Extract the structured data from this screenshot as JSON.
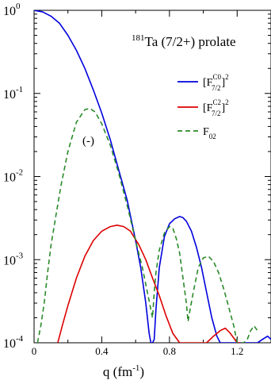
{
  "chart_data": {
    "type": "line",
    "title": "¹⁸¹Ta (7/2+) prolate",
    "title_parts": {
      "mass": "181",
      "text": "Ta (7/2+) prolate"
    },
    "xlabel": "q (fm⁻¹)",
    "xlabel_parts": {
      "base": "q (fm",
      "sup": "-1",
      "close": ")"
    },
    "ylabel": "",
    "xlim": [
      0,
      1.4
    ],
    "ylim": [
      0.0001,
      1
    ],
    "yscale": "log",
    "x_ticks": [
      {
        "v": 0,
        "label": "0"
      },
      {
        "v": 0.4,
        "label": "0.4"
      },
      {
        "v": 0.8,
        "label": "0.8"
      },
      {
        "v": 1.2,
        "label": "1.2"
      }
    ],
    "y_ticks": [
      {
        "v": 1,
        "base": "10",
        "exp": "0"
      },
      {
        "v": 0.1,
        "base": "10",
        "exp": "-1"
      },
      {
        "v": 0.01,
        "base": "10",
        "exp": "-2"
      },
      {
        "v": 0.001,
        "base": "10",
        "exp": "-3"
      },
      {
        "v": 0.0001,
        "base": "10",
        "exp": "-4"
      }
    ],
    "legend_position": "top-right",
    "annotations": [
      {
        "text": "(-)",
        "x": 0.3,
        "y": 0.023,
        "color": "#2a8a2a"
      }
    ],
    "series": [
      {
        "name": "[F^C0_7/2]^2",
        "legend": {
          "pre": "[F",
          "sup": "C0",
          "sub": "7/2",
          "post": "]",
          "post_sup": "2"
        },
        "color": "#0000dd",
        "dash": "none",
        "x": [
          0,
          0.05,
          0.1,
          0.15,
          0.2,
          0.25,
          0.3,
          0.35,
          0.4,
          0.45,
          0.5,
          0.55,
          0.6,
          0.63,
          0.66,
          0.68,
          0.69,
          0.7,
          0.71,
          0.72,
          0.74,
          0.77,
          0.8,
          0.83,
          0.86,
          0.88,
          0.9,
          0.93,
          0.96,
          0.99,
          1.02,
          1.05,
          1.08,
          1.1,
          1.11,
          1.113,
          1.12,
          1.14,
          1.17,
          1.2,
          1.23,
          1.26,
          1.29,
          1.32,
          1.35,
          1.38,
          1.4
        ],
        "values": [
          1.0,
          0.96,
          0.85,
          0.7,
          0.5,
          0.33,
          0.2,
          0.11,
          0.058,
          0.028,
          0.012,
          0.0052,
          0.0017,
          0.0008,
          0.0003,
          0.00013,
          0.0001,
          0.0001,
          0.00011,
          0.00025,
          0.0008,
          0.0019,
          0.0027,
          0.0031,
          0.0033,
          0.0032,
          0.0029,
          0.0022,
          0.0014,
          0.0008,
          0.0004,
          0.0002,
          0.00012,
          0.0001,
          0.0001,
          0.0001,
          0.0001,
          0.0001,
          0.0001,
          0.0001,
          0.0001,
          0.0001,
          0.0001,
          0.0001,
          0.00011,
          0.00012,
          0.00011
        ]
      },
      {
        "name": "[F^C2_7/2]^2",
        "legend": {
          "pre": "[F",
          "sup": "C2",
          "sub": "7/2",
          "post": "]",
          "post_sup": "2"
        },
        "color": "#dd0000",
        "dash": "none",
        "x": [
          0.14,
          0.17,
          0.2,
          0.25,
          0.3,
          0.35,
          0.4,
          0.45,
          0.49,
          0.53,
          0.57,
          0.62,
          0.66,
          0.7,
          0.74,
          0.78,
          0.82,
          0.86,
          0.88,
          0.9,
          0.93,
          0.97,
          1.02,
          1.06,
          1.1,
          1.13,
          1.16,
          1.2,
          1.22
        ],
        "values": [
          0.0001,
          0.00017,
          0.00028,
          0.0006,
          0.0011,
          0.0017,
          0.0022,
          0.0025,
          0.0026,
          0.0025,
          0.0022,
          0.0015,
          0.001,
          0.0006,
          0.00037,
          0.00021,
          0.00013,
          0.0001,
          0.0001,
          0.0001,
          0.0001,
          0.0001,
          0.0001,
          0.00012,
          0.00014,
          0.00015,
          0.00013,
          0.0001,
          0.0001
        ]
      },
      {
        "name": "F_02",
        "legend": {
          "pre": "F",
          "sup": "",
          "sub": "02",
          "post": "",
          "post_sup": ""
        },
        "color": "#2a8a2a",
        "dash": "6,4",
        "x": [
          0.02,
          0.04,
          0.06,
          0.08,
          0.1,
          0.13,
          0.16,
          0.2,
          0.25,
          0.3,
          0.33,
          0.36,
          0.4,
          0.45,
          0.5,
          0.55,
          0.6,
          0.64,
          0.67,
          0.7,
          0.71,
          0.72,
          0.74,
          0.77,
          0.8,
          0.82,
          0.84,
          0.86,
          0.88,
          0.9,
          0.91,
          0.92,
          0.94,
          0.97,
          1.0,
          1.03,
          1.06,
          1.09,
          1.12,
          1.15,
          1.18,
          1.2,
          1.22,
          1.24,
          1.26,
          1.28,
          1.3,
          1.32
        ],
        "values": [
          0.0001,
          0.00016,
          0.0003,
          0.0007,
          0.0015,
          0.0035,
          0.008,
          0.02,
          0.045,
          0.064,
          0.066,
          0.06,
          0.043,
          0.024,
          0.011,
          0.0045,
          0.0017,
          0.0008,
          0.0004,
          0.0002,
          0.0004,
          0.0007,
          0.0013,
          0.0021,
          0.0025,
          0.0024,
          0.0018,
          0.0012,
          0.0006,
          0.0003,
          0.00018,
          0.00024,
          0.0004,
          0.0008,
          0.00105,
          0.0011,
          0.00095,
          0.0007,
          0.00045,
          0.00027,
          0.00016,
          0.0001,
          0.0001,
          0.0001,
          0.00011,
          0.00014,
          0.00016,
          0.00014
        ]
      }
    ]
  }
}
